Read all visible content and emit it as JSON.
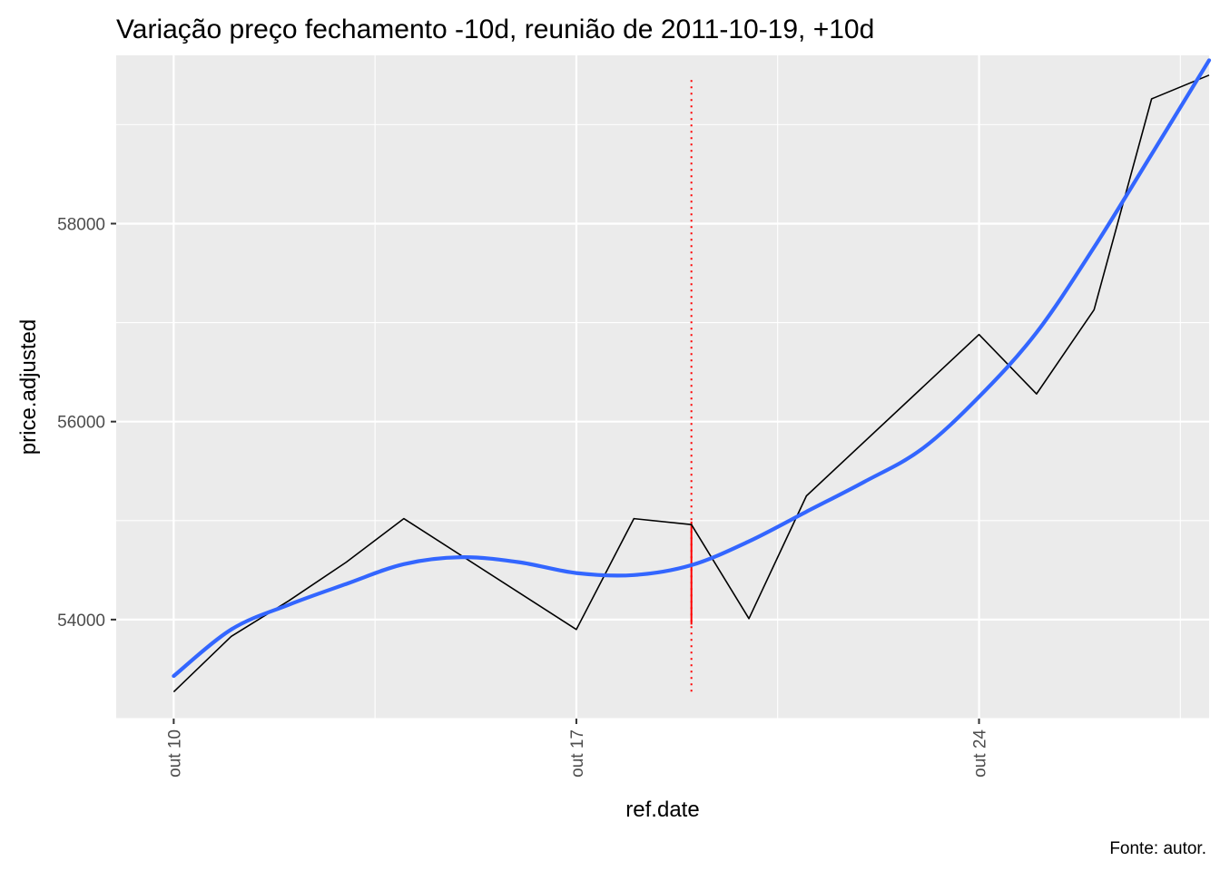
{
  "chart_data": {
    "type": "line",
    "title": "Variação preço fechamento -10d, reunião de 2011-10-19, +10d",
    "xlabel": "ref.date",
    "ylabel": "price.adjusted",
    "caption": "Fonte: autor.",
    "x_ticks": [
      {
        "date": "2011-10-10",
        "label": "out 10"
      },
      {
        "date": "2011-10-17",
        "label": "out 17"
      },
      {
        "date": "2011-10-24",
        "label": "out 24"
      }
    ],
    "y_ticks": [
      54000,
      56000,
      58000
    ],
    "xlim": [
      "2011-10-09",
      "2011-10-28"
    ],
    "ylim": [
      53000,
      59700
    ],
    "grid": true,
    "series": [
      {
        "style": "line",
        "color": "#000000",
        "x": [
          "2011-10-10",
          "2011-10-11",
          "2011-10-12",
          "2011-10-13",
          "2011-10-14",
          "2011-10-17",
          "2011-10-18",
          "2011-10-19",
          "2011-10-20",
          "2011-10-21",
          "2011-10-24",
          "2011-10-25",
          "2011-10-26",
          "2011-10-27",
          "2011-10-28"
        ],
        "y": [
          53270,
          53830,
          54190,
          54580,
          55020,
          53900,
          55020,
          54960,
          54010,
          55250,
          56880,
          56280,
          57130,
          59260,
          59500
        ]
      },
      {
        "style": "smooth",
        "color": "#3366FF",
        "x": [
          "2011-10-10",
          "2011-10-11",
          "2011-10-12",
          "2011-10-13",
          "2011-10-14",
          "2011-10-15",
          "2011-10-16",
          "2011-10-17",
          "2011-10-18",
          "2011-10-19",
          "2011-10-20",
          "2011-10-21",
          "2011-10-22",
          "2011-10-23",
          "2011-10-24",
          "2011-10-25",
          "2011-10-26",
          "2011-10-27",
          "2011-10-28"
        ],
        "y": [
          53430,
          53900,
          54150,
          54360,
          54560,
          54630,
          54580,
          54470,
          54450,
          54550,
          54790,
          55090,
          55390,
          55720,
          56250,
          56900,
          57760,
          58700,
          59650
        ]
      }
    ],
    "vline": {
      "date": "2011-10-19",
      "color": "#FF0000",
      "dotted_range": [
        53250,
        59450
      ],
      "solid_range": [
        53950,
        54990
      ]
    }
  }
}
